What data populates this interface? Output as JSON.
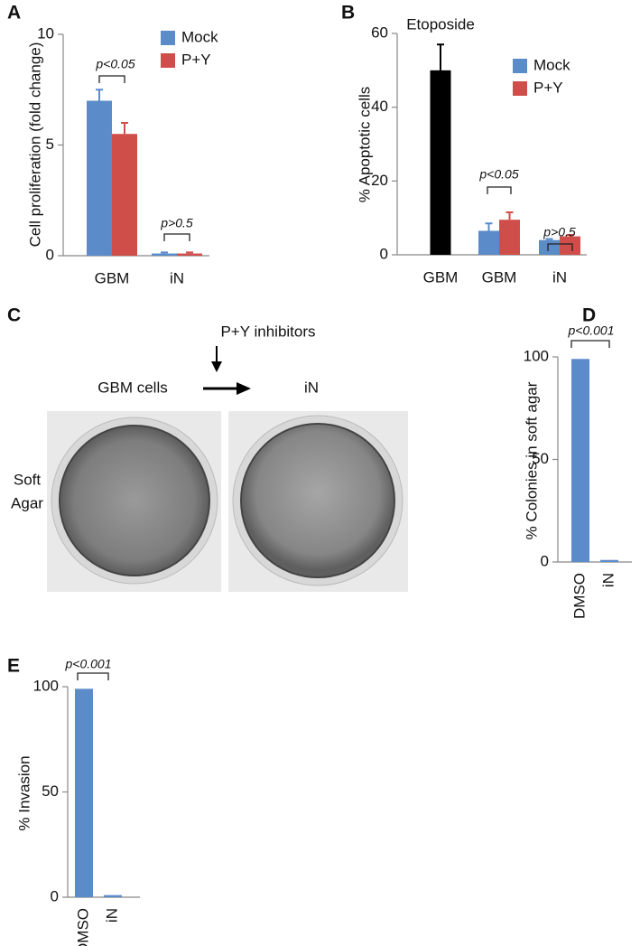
{
  "chart_data": [
    {
      "type": "bar",
      "panel": "A",
      "ylabel": "Cell proliferation (fold change)",
      "categories": [
        "GBM",
        "iN"
      ],
      "series": [
        {
          "name": "Mock",
          "color": "#5b8bc9",
          "values": [
            7.0,
            0.1
          ],
          "errors": [
            0.5,
            0.05
          ]
        },
        {
          "name": "P+Y",
          "color": "#d04e4a",
          "values": [
            5.5,
            0.1
          ],
          "errors": [
            0.5,
            0.05
          ]
        }
      ],
      "ylim": [
        0,
        10
      ],
      "yticks": [
        0,
        5,
        10
      ],
      "annotations": [
        "p<0.05",
        "p>0.5"
      ]
    },
    {
      "type": "bar",
      "panel": "B",
      "ylabel": "% Apoptotic cells",
      "categories": [
        "GBM",
        "GBM",
        "iN"
      ],
      "series": [
        {
          "name": "Mock",
          "color": "#5b8bc9",
          "values": [
            null,
            6.5,
            4.0
          ],
          "errors": [
            null,
            2.0,
            0.3
          ]
        },
        {
          "name": "P+Y",
          "color": "#d04e4a",
          "values": [
            null,
            9.5,
            5.0
          ],
          "errors": [
            null,
            2.0,
            0.4
          ]
        },
        {
          "name": "Etoposide",
          "color": "#000000",
          "values": [
            50,
            null,
            null
          ],
          "errors": [
            7,
            null,
            null
          ]
        }
      ],
      "ylim": [
        0,
        60
      ],
      "yticks": [
        0,
        20,
        40,
        60
      ],
      "annotations": [
        "p<0.05",
        "p>0.5"
      ]
    },
    {
      "type": "bar",
      "panel": "D",
      "ylabel": "% Colonies in soft agar",
      "categories": [
        "DMSO",
        "iN"
      ],
      "series": [
        {
          "name": null,
          "color": "#5b8bc9",
          "values": [
            99,
            1
          ]
        }
      ],
      "ylim": [
        0,
        100
      ],
      "yticks": [
        0,
        50,
        100
      ],
      "annotations": [
        "p<0.001"
      ]
    },
    {
      "type": "bar",
      "panel": "E",
      "ylabel": "% Invasion",
      "categories": [
        "DMSO",
        "iN"
      ],
      "series": [
        {
          "name": null,
          "color": "#5b8bc9",
          "values": [
            99,
            1
          ]
        }
      ],
      "ylim": [
        0,
        100
      ],
      "yticks": [
        0,
        50,
        100
      ],
      "annotations": [
        "p<0.001"
      ]
    }
  ],
  "panel_c": {
    "panel": "C",
    "arrow_label": "P+Y inhibitors",
    "from": "GBM cells",
    "to": "iN",
    "row_label": [
      "Soft",
      "Agar"
    ]
  }
}
